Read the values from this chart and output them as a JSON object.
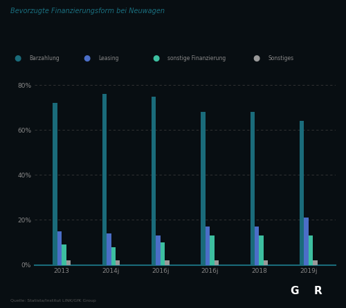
{
  "title": "Bevorzugte Finanzierungsform bei Neuwagen",
  "x_labels": [
    "2013",
    "2014j",
    "2016j",
    "2016j",
    "2018",
    "2019j"
  ],
  "series": [
    {
      "name": "Barzahlung",
      "color": "#1a6b7a",
      "values": [
        72,
        76,
        75,
        68,
        68,
        64
      ]
    },
    {
      "name": "Leasing",
      "color": "#4b6ec7",
      "values": [
        15,
        14,
        13,
        17,
        17,
        21
      ]
    },
    {
      "name": "sonstige Finanzierung",
      "color": "#3dbfa0",
      "values": [
        9,
        8,
        10,
        13,
        13,
        13
      ]
    },
    {
      "name": "Sonstiges",
      "color": "#999999",
      "values": [
        2,
        2,
        2,
        2,
        2,
        2
      ]
    }
  ],
  "ylim": [
    0,
    85
  ],
  "yticks": [
    0,
    20,
    40,
    60,
    80
  ],
  "ytick_labels": [
    "0%",
    "20%",
    "40%",
    "60%",
    "80%"
  ],
  "background_color": "#080e12",
  "plot_bg_color": "#080e12",
  "grid_color": "#3a3a3a",
  "text_color": "#888888",
  "title_color": "#1a7080",
  "source_text": "Quelle: Statista/Institut LINK/GfK Group",
  "logo_bg": "#1a5f70",
  "bar_width": 0.09
}
